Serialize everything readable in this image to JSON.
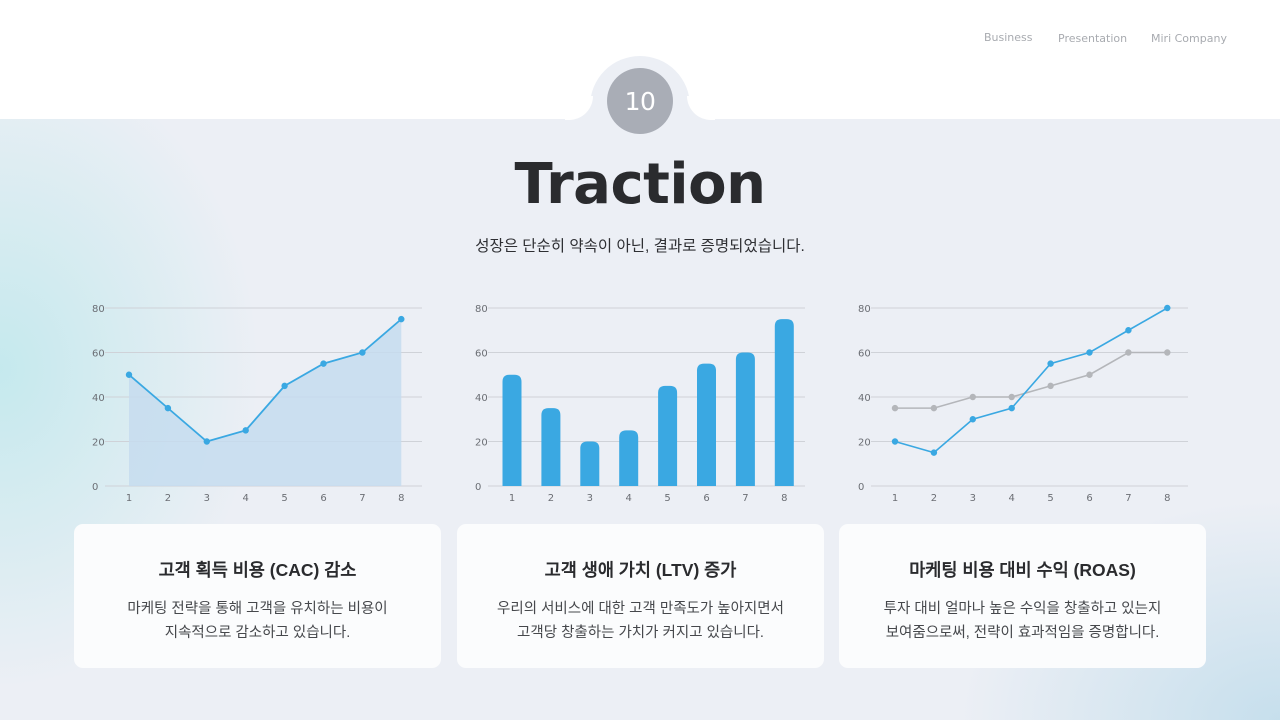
{
  "header": {
    "nav": [
      "Business",
      "Presentation",
      "Miri Company"
    ],
    "page_number": "10"
  },
  "slide": {
    "title": "Traction",
    "subtitle": "성장은 단순히 약속이 아닌, 결과로 증명되었습니다."
  },
  "colors": {
    "accent_blue": "#3aa8e2",
    "gray_series": "#b4b6ba",
    "area_fill": "#c5dcee",
    "badge": "#a9adb6",
    "title_text": "#2a2b2e"
  },
  "cards": [
    {
      "title": "고객 획득 비용 (CAC) 감소",
      "desc_line1": "마케팅 전략을 통해 고객을 유치하는 비용이",
      "desc_line2": "지속적으로 감소하고 있습니다."
    },
    {
      "title": "고객 생애 가치 (LTV) 증가",
      "desc_line1": "우리의 서비스에 대한 고객 만족도가 높아지면서",
      "desc_line2": "고객당 창출하는 가치가 커지고 있습니다."
    },
    {
      "title": "마케팅 비용 대비 수익 (ROAS)",
      "desc_line1": "투자 대비 얼마나 높은 수익을 창출하고 있는지",
      "desc_line2": "보여줌으로써, 전략이 효과적임을 증명합니다."
    }
  ],
  "chart_data": [
    {
      "type": "area",
      "title": "",
      "xlabel": "",
      "ylabel": "",
      "categories": [
        "1",
        "2",
        "3",
        "4",
        "5",
        "6",
        "7",
        "8"
      ],
      "values": [
        50,
        35,
        20,
        25,
        45,
        55,
        60,
        75
      ],
      "yticks": [
        "0",
        "20",
        "40",
        "60",
        "80"
      ],
      "ylim": [
        0,
        80
      ],
      "grid": true,
      "legend": false
    },
    {
      "type": "bar",
      "title": "",
      "xlabel": "",
      "ylabel": "",
      "categories": [
        "1",
        "2",
        "3",
        "4",
        "5",
        "6",
        "7",
        "8"
      ],
      "values": [
        50,
        35,
        20,
        25,
        45,
        55,
        60,
        75
      ],
      "yticks": [
        "0",
        "20",
        "40",
        "60",
        "80"
      ],
      "ylim": [
        0,
        80
      ],
      "grid": true,
      "legend": false
    },
    {
      "type": "line",
      "title": "",
      "xlabel": "",
      "ylabel": "",
      "categories": [
        "1",
        "2",
        "3",
        "4",
        "5",
        "6",
        "7",
        "8"
      ],
      "series": [
        {
          "name": "blue",
          "values": [
            20,
            15,
            30,
            35,
            55,
            60,
            70,
            80
          ]
        },
        {
          "name": "gray",
          "values": [
            35,
            35,
            40,
            40,
            45,
            50,
            60,
            60
          ]
        }
      ],
      "yticks": [
        "0",
        "20",
        "40",
        "60",
        "80"
      ],
      "ylim": [
        0,
        80
      ],
      "grid": true,
      "legend": false
    }
  ]
}
